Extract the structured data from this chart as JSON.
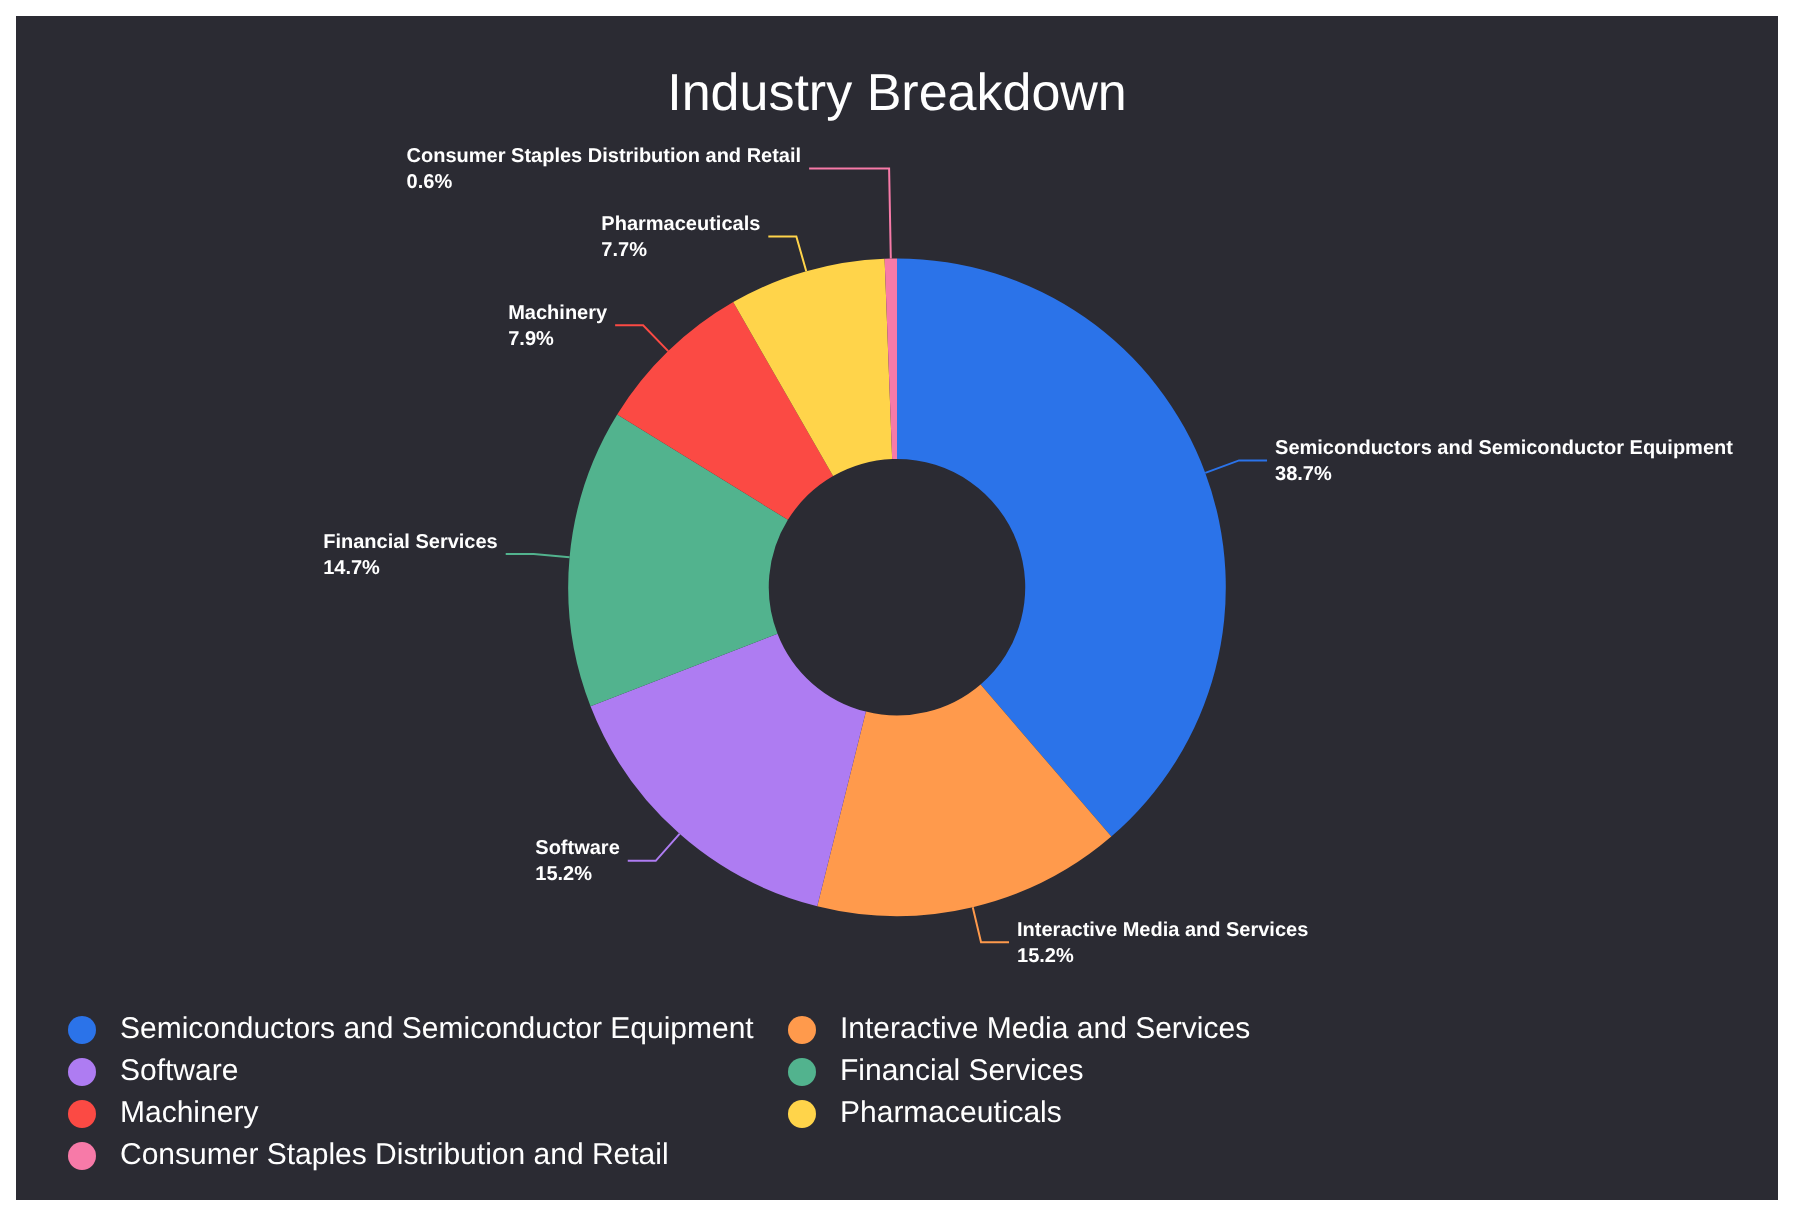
{
  "chart_data": {
    "type": "donut",
    "title": "Industry Breakdown",
    "categories": [
      "Semiconductors and Semiconductor Equipment",
      "Interactive Media and Services",
      "Software",
      "Financial Services",
      "Machinery",
      "Pharmaceuticals",
      "Consumer Staples Distribution and Retail"
    ],
    "values": [
      38.7,
      15.2,
      15.2,
      14.7,
      7.9,
      7.7,
      0.6
    ],
    "colors": [
      "#2b73e9",
      "#ff9a4c",
      "#ae7cf2",
      "#52b38e",
      "#fb4a44",
      "#ffd44a",
      "#f77aa8"
    ],
    "value_labels": [
      "38.7%",
      "15.2%",
      "15.2%",
      "14.7%",
      "7.9%",
      "7.7%",
      "0.6%"
    ],
    "legend": "bottom"
  }
}
